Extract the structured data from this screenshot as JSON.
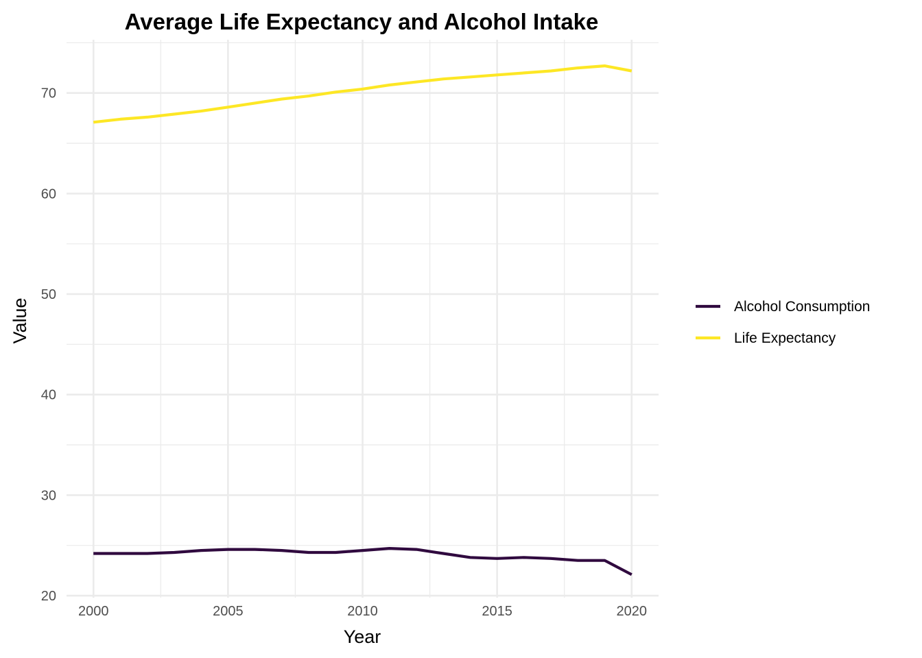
{
  "chart_data": {
    "type": "line",
    "title": "Average Life Expectancy and Alcohol Intake",
    "xlabel": "Year",
    "ylabel": "Value",
    "xlim": [
      1999.0,
      2021.0
    ],
    "ylim": [
      19.8,
      75.3
    ],
    "x_ticks": [
      2000,
      2005,
      2010,
      2015,
      2020
    ],
    "y_ticks": [
      20,
      30,
      40,
      50,
      60,
      70
    ],
    "grid": true,
    "legend_position": "right",
    "x": [
      2000,
      2001,
      2002,
      2003,
      2004,
      2005,
      2006,
      2007,
      2008,
      2009,
      2010,
      2011,
      2012,
      2013,
      2014,
      2015,
      2016,
      2017,
      2018,
      2019,
      2020
    ],
    "series": [
      {
        "name": "Alcohol Consumption",
        "color": "#300A3F",
        "values": [
          24.2,
          24.2,
          24.2,
          24.3,
          24.5,
          24.6,
          24.6,
          24.5,
          24.3,
          24.3,
          24.5,
          24.7,
          24.6,
          24.2,
          23.8,
          23.7,
          23.8,
          23.7,
          23.5,
          23.5,
          22.1
        ]
      },
      {
        "name": "Life Expectancy",
        "color": "#FDE725",
        "values": [
          67.1,
          67.4,
          67.6,
          67.9,
          68.2,
          68.6,
          69.0,
          69.4,
          69.7,
          70.1,
          70.4,
          70.8,
          71.1,
          71.4,
          71.6,
          71.8,
          72.0,
          72.2,
          72.5,
          72.7,
          72.2
        ]
      }
    ]
  }
}
